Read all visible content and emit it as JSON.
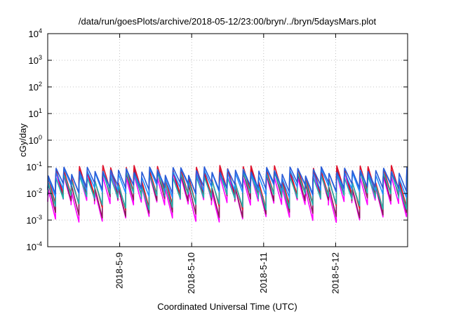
{
  "chart_data": {
    "type": "line",
    "title": "/data/run/goesPlots/archive/2018-05-12/23:00/bryn/../bryn/5daysMars.plot",
    "xlabel": "Coordinated Universal Time (UTC)",
    "ylabel": "cGy/day",
    "y_scale": "log",
    "ylim": [
      0.0001,
      10000
    ],
    "xlim": [
      "2018-05-08T00:00",
      "2018-05-13T00:00"
    ],
    "grid": "dotted",
    "legend": "none",
    "y_ticks": [
      {
        "value": 0.0001,
        "base": "10",
        "exp": "-4"
      },
      {
        "value": 0.001,
        "base": "10",
        "exp": "-3"
      },
      {
        "value": 0.01,
        "base": "10",
        "exp": "-2"
      },
      {
        "value": 0.1,
        "base": "10",
        "exp": "-1"
      },
      {
        "value": 1,
        "base": "10",
        "exp": "0"
      },
      {
        "value": 10,
        "base": "10",
        "exp": "1"
      },
      {
        "value": 100,
        "base": "10",
        "exp": "2"
      },
      {
        "value": 1000,
        "base": "10",
        "exp": "3"
      },
      {
        "value": 10000,
        "base": "10",
        "exp": "4"
      }
    ],
    "x_ticks": [
      {
        "value": "2018-05-09T00:00",
        "label": "2018-5-9"
      },
      {
        "value": "2018-05-10T00:00",
        "label": "2018-5-10"
      },
      {
        "value": "2018-05-11T00:00",
        "label": "2018-5-11"
      },
      {
        "value": "2018-05-12T00:00",
        "label": "2018-5-12"
      }
    ],
    "series": [
      {
        "color": "#ff00ff",
        "low_peak": 0.0035,
        "high_peak": 0.05
      },
      {
        "color": "#8b1a5a",
        "low_peak": 0.005,
        "high_peak": 0.07
      },
      {
        "color": "#e0102a",
        "low_peak": 0.008,
        "high_peak": 0.09
      },
      {
        "color": "#20b2aa",
        "low_peak": 0.006,
        "high_peak": 0.05
      },
      {
        "color": "#1e90ff",
        "low_peak": 0.012,
        "high_peak": 0.07
      },
      {
        "color": "#2a5bd7",
        "low_peak": 0.015,
        "high_peak": 0.08
      }
    ],
    "pattern": {
      "period_hours": 2.6,
      "rise_hours": 0.2
    }
  }
}
